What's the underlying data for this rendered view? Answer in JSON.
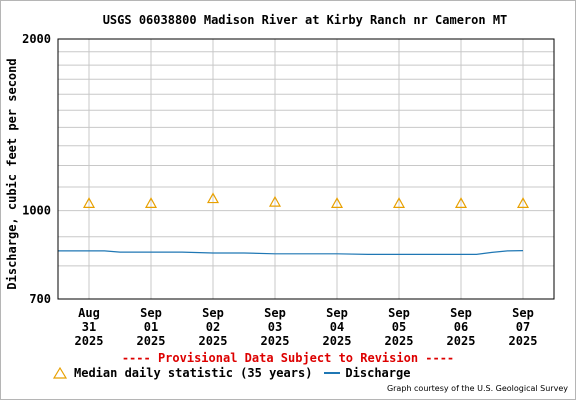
{
  "chart_data": {
    "type": "line",
    "title": "USGS 06038800 Madison River at Kirby Ranch nr Cameron MT",
    "ylabel": "Discharge, cubic feet per second",
    "yscale": "log",
    "ylim": [
      700,
      2000
    ],
    "y_ticks": [
      "700",
      "1000",
      "2000"
    ],
    "x_ticks": [
      {
        "month": "Aug",
        "day": "31",
        "year": "2025"
      },
      {
        "month": "Sep",
        "day": "01",
        "year": "2025"
      },
      {
        "month": "Sep",
        "day": "02",
        "year": "2025"
      },
      {
        "month": "Sep",
        "day": "03",
        "year": "2025"
      },
      {
        "month": "Sep",
        "day": "04",
        "year": "2025"
      },
      {
        "month": "Sep",
        "day": "05",
        "year": "2025"
      },
      {
        "month": "Sep",
        "day": "06",
        "year": "2025"
      },
      {
        "month": "Sep",
        "day": "07",
        "year": "2025"
      }
    ],
    "xlim": [
      "2025-08-30T12:00",
      "2025-09-07T12:00"
    ],
    "grid": true,
    "series": [
      {
        "name": "Median daily statistic (35 years)",
        "style": "triangle-markers",
        "color": "#e8a000",
        "x": [
          "2025-08-31",
          "2025-09-01",
          "2025-09-02",
          "2025-09-03",
          "2025-09-04",
          "2025-09-05",
          "2025-09-06",
          "2025-09-07"
        ],
        "values": [
          1030,
          1030,
          1050,
          1035,
          1030,
          1030,
          1030,
          1030
        ]
      },
      {
        "name": "Discharge",
        "style": "line",
        "color": "#1f77b4",
        "x": [
          "2025-08-30T12:00",
          "2025-08-31T00:00",
          "2025-08-31T06:00",
          "2025-08-31T12:00",
          "2025-09-01T00:00",
          "2025-09-01T12:00",
          "2025-09-02T00:00",
          "2025-09-02T12:00",
          "2025-09-03T00:00",
          "2025-09-03T12:00",
          "2025-09-04T00:00",
          "2025-09-04T12:00",
          "2025-09-05T00:00",
          "2025-09-05T12:00",
          "2025-09-06T00:00",
          "2025-09-06T06:00",
          "2025-09-06T12:00",
          "2025-09-06T18:00",
          "2025-09-07T00:00"
        ],
        "values": [
          850,
          850,
          850,
          846,
          846,
          846,
          843,
          843,
          840,
          840,
          840,
          838,
          838,
          838,
          838,
          838,
          845,
          850,
          851
        ]
      }
    ],
    "legend": "bottom-left"
  },
  "legend": {
    "median_label": "Median daily statistic (35 years)",
    "discharge_label": "Discharge"
  },
  "notice": "---- Provisional Data Subject to Revision ----",
  "credit": "Graph courtesy of the U.S. Geological Survey",
  "colors": {
    "median": "#e8a000",
    "discharge": "#1f77b4",
    "notice": "#dd0000",
    "grid": "#c8c8c8"
  }
}
